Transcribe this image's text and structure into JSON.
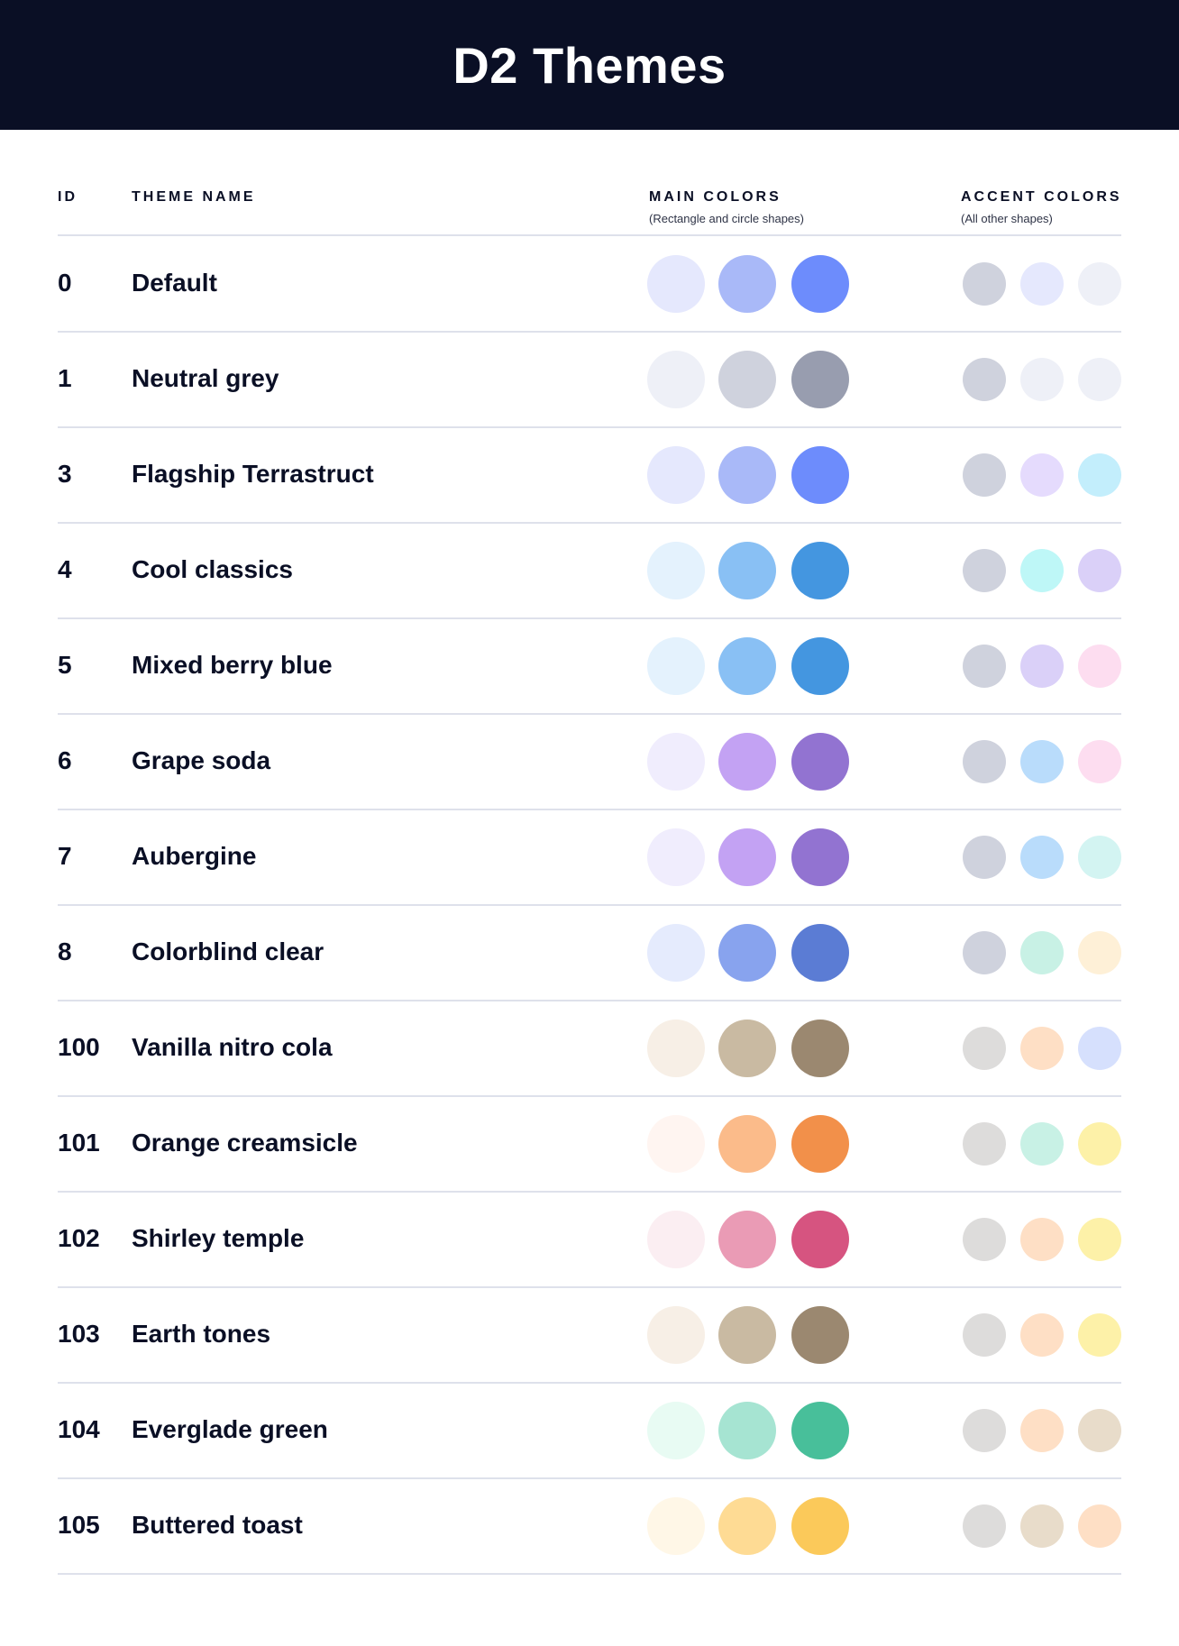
{
  "header": {
    "title": "D2 Themes"
  },
  "columns": {
    "id": "ID",
    "name": "THEME NAME",
    "main": "MAIN COLORS",
    "main_sub": "(Rectangle and circle shapes)",
    "accent": "ACCENT COLORS",
    "accent_sub": "(All other shapes)"
  },
  "themes": [
    {
      "id": "0",
      "name": "Default",
      "main": [
        "#E5E8FD",
        "#A9B9F8",
        "#6D8CFC"
      ],
      "accent": [
        "#CFD2DD",
        "#E5E8FD",
        "#EEF0F7"
      ]
    },
    {
      "id": "1",
      "name": "Neutral grey",
      "main": [
        "#EEF0F7",
        "#CFD2DD",
        "#989DAF"
      ],
      "accent": [
        "#CFD2DD",
        "#EEF0F7",
        "#EEF0F7"
      ]
    },
    {
      "id": "3",
      "name": "Flagship Terrastruct",
      "main": [
        "#E5E8FD",
        "#A9B9F8",
        "#6D8CFC"
      ],
      "accent": [
        "#CFD2DD",
        "#E5DBFD",
        "#C3EEFC"
      ]
    },
    {
      "id": "4",
      "name": "Cool classics",
      "main": [
        "#E4F2FD",
        "#89C0F4",
        "#4496E0"
      ],
      "accent": [
        "#CFD2DD",
        "#BEF7F7",
        "#DAD0F8"
      ]
    },
    {
      "id": "5",
      "name": "Mixed berry blue",
      "main": [
        "#E4F2FD",
        "#89C0F4",
        "#4496E0"
      ],
      "accent": [
        "#CFD2DD",
        "#DAD0F8",
        "#FDDDF0"
      ]
    },
    {
      "id": "6",
      "name": "Grape soda",
      "main": [
        "#F0EDFD",
        "#C3A2F3",
        "#9273D1"
      ],
      "accent": [
        "#CFD2DD",
        "#B9DCFB",
        "#FDDDF0"
      ]
    },
    {
      "id": "7",
      "name": "Aubergine",
      "main": [
        "#F0EDFD",
        "#C3A2F3",
        "#9273D1"
      ],
      "accent": [
        "#CFD2DD",
        "#B9DCFB",
        "#D3F4F2"
      ]
    },
    {
      "id": "8",
      "name": "Colorblind clear",
      "main": [
        "#E5EBFD",
        "#88A3EE",
        "#5B7CD4"
      ],
      "accent": [
        "#CFD2DD",
        "#C8F1E5",
        "#FEF0D7"
      ]
    },
    {
      "id": "100",
      "name": "Vanilla nitro cola",
      "main": [
        "#F7EFE6",
        "#C9BAA2",
        "#9B8870"
      ],
      "accent": [
        "#DDDCDB",
        "#FEDFC5",
        "#D6E0FD"
      ]
    },
    {
      "id": "101",
      "name": "Orange creamsicle",
      "main": [
        "#FFF5F1",
        "#FBBB8A",
        "#F2904A"
      ],
      "accent": [
        "#DDDCDB",
        "#C8F1E5",
        "#FDF1A8"
      ]
    },
    {
      "id": "102",
      "name": "Shirley temple",
      "main": [
        "#FBEEF2",
        "#EA9BB5",
        "#D65480"
      ],
      "accent": [
        "#DDDCDB",
        "#FEDFC5",
        "#FDF1A8"
      ]
    },
    {
      "id": "103",
      "name": "Earth tones",
      "main": [
        "#F7EFE6",
        "#C9BAA2",
        "#9B8870"
      ],
      "accent": [
        "#DDDCDB",
        "#FEDFC5",
        "#FDF1A8"
      ]
    },
    {
      "id": "104",
      "name": "Everglade green",
      "main": [
        "#E8FBF3",
        "#A6E4D2",
        "#48BF9A"
      ],
      "accent": [
        "#DDDCDB",
        "#FEDFC5",
        "#E8DCCA"
      ]
    },
    {
      "id": "105",
      "name": "Buttered toast",
      "main": [
        "#FFF7E7",
        "#FEDB94",
        "#FBC95A"
      ],
      "accent": [
        "#DDDCDB",
        "#E8DCCA",
        "#FEDFC5"
      ]
    }
  ]
}
